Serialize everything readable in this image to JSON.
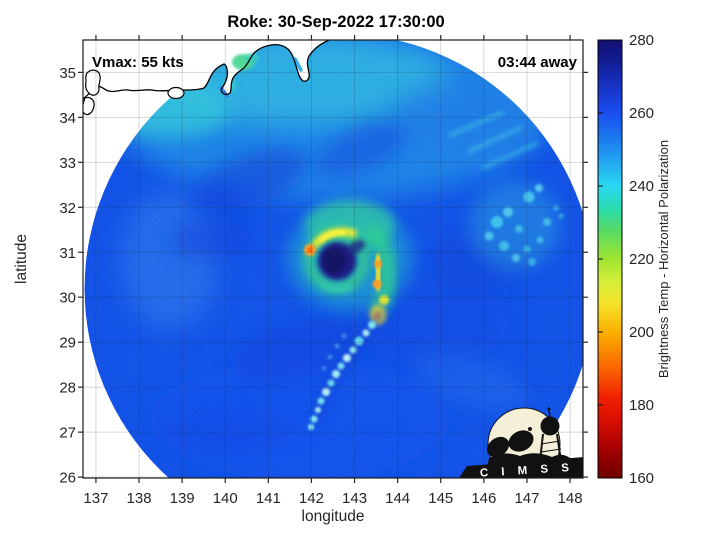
{
  "figure": {
    "title": "Roke: 30-Sep-2022 17:30:00",
    "annotation_left": "Vmax: 55 kts",
    "annotation_right": "03:44 away",
    "logo_text": "C I M S S"
  },
  "colors": {
    "swath_background": "#0c4fe9",
    "eye": "#16167e",
    "eyewall_ring": "#30cf86",
    "eyewall_hotspots": "#ff9e1c",
    "land_fill": "#ffffff",
    "coast_outline": "#000000",
    "grid": "rgba(38,38,38,0.18)",
    "axis_text": "#262626",
    "logo_disc": "#f6efd7"
  },
  "chart_data": {
    "type": "heatmap",
    "title": "Roke: 30-Sep-2022 17:30:00",
    "xlabel": "longitude",
    "ylabel": "latitude",
    "xlim": [
      136.7,
      148.3
    ],
    "ylim": [
      25.98,
      35.72
    ],
    "xticks": [
      137,
      138,
      139,
      140,
      141,
      142,
      143,
      144,
      145,
      146,
      147,
      148
    ],
    "yticks": [
      26,
      27,
      28,
      29,
      30,
      31,
      32,
      33,
      34,
      35
    ],
    "grid": true,
    "legend_position": "right-colorbar",
    "annotations": [
      {
        "text": "Vmax: 55 kts",
        "position": "top-left"
      },
      {
        "text": "03:44 away",
        "position": "top-right"
      }
    ],
    "colorbar": {
      "label": "Brightness Temp - Horizontal Polarization",
      "min": 160,
      "max": 280,
      "ticks": [
        160,
        180,
        200,
        220,
        240,
        260,
        280
      ],
      "stops": [
        {
          "value": 160,
          "color": "#6f0000"
        },
        {
          "value": 168,
          "color": "#a50000"
        },
        {
          "value": 176,
          "color": "#d90f00"
        },
        {
          "value": 182,
          "color": "#f02000"
        },
        {
          "value": 190,
          "color": "#fa6400"
        },
        {
          "value": 200,
          "color": "#fbb000"
        },
        {
          "value": 208,
          "color": "#f5e42c"
        },
        {
          "value": 214,
          "color": "#d3ee3a"
        },
        {
          "value": 220,
          "color": "#9fe531"
        },
        {
          "value": 228,
          "color": "#55da66"
        },
        {
          "value": 234,
          "color": "#27dcb2"
        },
        {
          "value": 240,
          "color": "#2ad9f2"
        },
        {
          "value": 248,
          "color": "#219cf0"
        },
        {
          "value": 254,
          "color": "#1b74ee"
        },
        {
          "value": 260,
          "color": "#1a4df0"
        },
        {
          "value": 268,
          "color": "#1530c0"
        },
        {
          "value": 274,
          "color": "#121d94"
        },
        {
          "value": 280,
          "color": "#131071"
        }
      ]
    },
    "swath": {
      "center_lon": 142.65,
      "center_lat": 30.2,
      "radius_deg": 5.8,
      "ocean_background_tb": 252,
      "no_data": "white outside circular scan and over land"
    },
    "storm": {
      "name": "Roke",
      "datetime": "30-Sep-2022 17:30:00",
      "vmax_kts": 55,
      "obs_time_offset": "03:44 away",
      "eye": {
        "lon": 142.6,
        "lat": 30.8,
        "tb_approx": 278
      },
      "eyewall": {
        "ring_radius_deg": 0.6,
        "cold_arc_tb_approx": 205,
        "hot_spots": [
          {
            "lon": 142.0,
            "lat": 31.0
          },
          {
            "lon": 143.5,
            "lat": 30.7
          }
        ]
      },
      "rainband": {
        "from": [
          143.7,
          29.7
        ],
        "to": [
          142.0,
          27.1
        ],
        "tb_approx": 225
      },
      "scattered_convection_region": {
        "lon_range": [
          145.0,
          147.0
        ],
        "lat_range": [
          30.3,
          32.7
        ]
      },
      "coastline": "southern Honshu, Japan across upper-left corner"
    }
  }
}
